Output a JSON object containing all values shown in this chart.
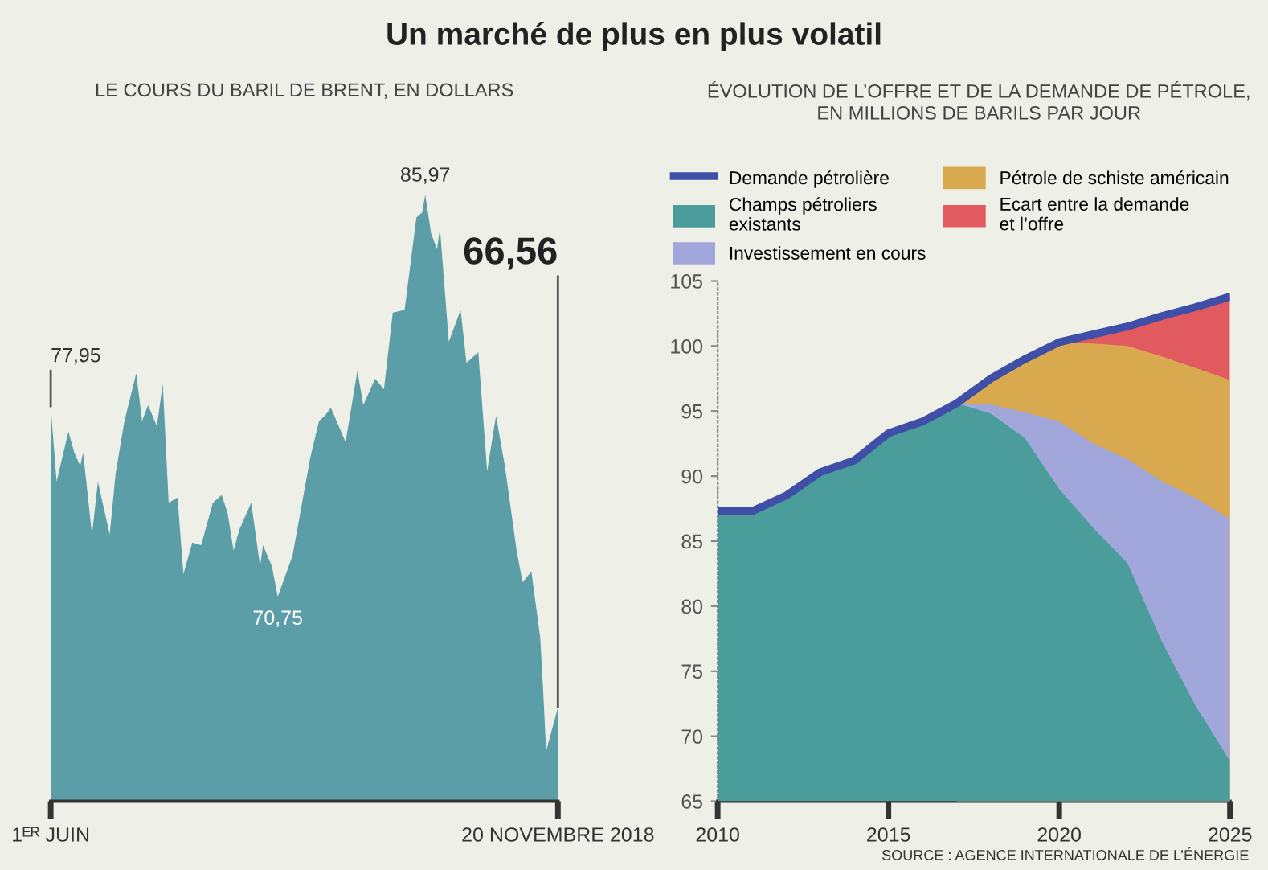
{
  "chart_data": [
    {
      "type": "area",
      "title": "Un marché de plus en plus volatil",
      "subtitle": "LE COURS DU BARIL DE BRENT, EN DOLLARS",
      "x": [
        "2018-06-01",
        "2018-06-03",
        "2018-06-07",
        "2018-06-09",
        "2018-06-11",
        "2018-06-12",
        "2018-06-15",
        "2018-06-17",
        "2018-06-21",
        "2018-06-23",
        "2018-06-26",
        "2018-06-30",
        "2018-07-02",
        "2018-07-04",
        "2018-07-07",
        "2018-07-09",
        "2018-07-11",
        "2018-07-14",
        "2018-07-16",
        "2018-07-19",
        "2018-07-22",
        "2018-07-26",
        "2018-07-29",
        "2018-07-31",
        "2018-08-02",
        "2018-08-04",
        "2018-08-08",
        "2018-08-11",
        "2018-08-12",
        "2018-08-15",
        "2018-08-17",
        "2018-08-22",
        "2018-08-28",
        "2018-08-31",
        "2018-09-02",
        "2018-09-04",
        "2018-09-09",
        "2018-09-13",
        "2018-09-15",
        "2018-09-19",
        "2018-09-22",
        "2018-09-25",
        "2018-09-29",
        "2018-10-03",
        "2018-10-05",
        "2018-10-06",
        "2018-10-08",
        "2018-10-10",
        "2018-10-11",
        "2018-10-14",
        "2018-10-18",
        "2018-10-20",
        "2018-10-24",
        "2018-10-27",
        "2018-10-30",
        "2018-11-02",
        "2018-11-06",
        "2018-11-08",
        "2018-11-11",
        "2018-11-14",
        "2018-11-15",
        "2018-11-16",
        "2018-11-20"
      ],
      "values": [
        77.95,
        75.1,
        77.0,
        76.2,
        75.7,
        76.2,
        73.1,
        75.1,
        73.1,
        75.4,
        77.4,
        79.2,
        77.4,
        78.0,
        77.2,
        78.8,
        74.3,
        74.5,
        71.6,
        72.8,
        72.7,
        74.3,
        74.6,
        73.9,
        72.5,
        73.3,
        74.3,
        71.9,
        72.7,
        71.9,
        70.75,
        72.3,
        76.0,
        77.4,
        77.6,
        77.9,
        76.6,
        79.3,
        78.0,
        79.0,
        78.6,
        81.5,
        81.6,
        85.1,
        85.3,
        85.97,
        84.5,
        83.9,
        84.7,
        80.4,
        81.6,
        79.6,
        80.0,
        75.5,
        77.6,
        75.7,
        72.5,
        71.3,
        71.7,
        69.2,
        67.2,
        64.9,
        66.56
      ],
      "value_labels": [
        "77,95",
        null,
        null,
        null,
        null,
        null,
        null,
        null,
        null,
        null,
        null,
        null,
        null,
        null,
        null,
        null,
        null,
        null,
        null,
        null,
        null,
        null,
        null,
        null,
        null,
        null,
        null,
        null,
        null,
        null,
        "70,75",
        null,
        null,
        null,
        null,
        null,
        null,
        null,
        null,
        null,
        null,
        null,
        null,
        null,
        null,
        "85,97",
        null,
        null,
        null,
        null,
        null,
        null,
        null,
        null,
        null,
        null,
        null,
        null,
        null,
        null,
        null,
        null,
        "66,56"
      ],
      "color": "#5c9ea7",
      "xlim": [
        "2018-06-01",
        "2018-11-20"
      ],
      "xticks": [
        {
          "value": "2018-06-01",
          "label": "1ᴱᴿ JUIN"
        },
        {
          "value": "2018-11-20",
          "label": "20 NOVEMBRE 2018"
        }
      ],
      "tick_labels": "x",
      "grid": false,
      "legend": false
    },
    {
      "type": "area",
      "subtitle": "ÉVOLUTION DE L’OFFRE ET DE LA DEMANDE DE PÉTROLE,\nEN MILLIONS DE BARILS PAR JOUR",
      "x": [
        2010,
        2011,
        2012,
        2013,
        2014,
        2015,
        2016,
        2017,
        2018,
        2019,
        2020,
        2021,
        2022,
        2023,
        2024,
        2025
      ],
      "series": [
        {
          "name": "Champs pétroliers\nexistants",
          "color": "#4b9d9b",
          "values": [
            87.3,
            87.3,
            88.5,
            90.3,
            91.2,
            93.3,
            94.2,
            95.6,
            94.8,
            92.9,
            89.0,
            86.0,
            83.3,
            77.3,
            72.3,
            68.1
          ]
        },
        {
          "name": "Investissement en cours",
          "color": "#a1a7da",
          "values": [
            null,
            null,
            null,
            null,
            null,
            null,
            null,
            95.6,
            95.5,
            94.9,
            94.2,
            92.5,
            91.3,
            89.6,
            88.3,
            86.7
          ]
        },
        {
          "name": "Pétrole de schiste américain",
          "color": "#d8a94f",
          "values": [
            null,
            null,
            null,
            null,
            null,
            null,
            null,
            95.6,
            97.5,
            99.0,
            100.3,
            100.2,
            100.0,
            99.2,
            98.3,
            97.4
          ]
        },
        {
          "name": "Ecart entre la demande\net l’offre",
          "color": "#e15a5f",
          "values": [
            null,
            null,
            null,
            null,
            null,
            null,
            null,
            null,
            null,
            null,
            100.3,
            100.9,
            101.5,
            102.3,
            103.0,
            103.8
          ]
        },
        {
          "name": "Demande pétrolière",
          "type": "line",
          "color": "#3f4ea6",
          "values": [
            87.3,
            87.3,
            88.5,
            90.3,
            91.2,
            93.3,
            94.2,
            95.6,
            97.5,
            99.0,
            100.3,
            100.9,
            101.5,
            102.3,
            103.0,
            103.8
          ]
        }
      ],
      "xlim": [
        2010,
        2025
      ],
      "ylim": [
        65,
        105
      ],
      "xticks": [
        2010,
        2015,
        2020,
        2025
      ],
      "yticks": [
        65,
        70,
        75,
        80,
        85,
        90,
        95,
        100,
        105
      ],
      "grid": false,
      "legend": "top",
      "annotations": [
        "SOURCE : AGENCE INTERNATIONALE DE L’ÉNERGIE"
      ]
    }
  ]
}
